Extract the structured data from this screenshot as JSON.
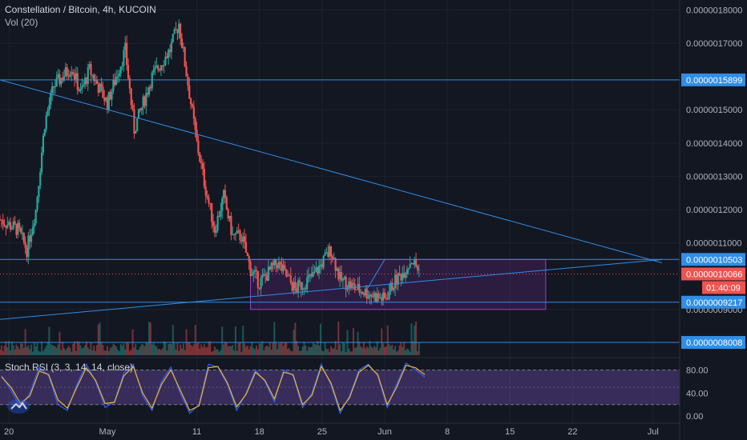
{
  "header": {
    "symbol_title": "Constellation / Bitcoin, 4h, KUCOIN",
    "volume_label": "Vol (20)"
  },
  "stoch": {
    "label": "Stoch RSI (3, 3, 14, 14, close)"
  },
  "colors": {
    "background": "#131722",
    "up": "#26a69a",
    "down": "#ef5350",
    "line": "#2f8ee6",
    "box_fill": "#6a2c8f",
    "k_line": "#2962ff",
    "d_line": "#f0b429",
    "stoch_band": "#7e57c2"
  },
  "chart_data": [
    {
      "type": "candlestick",
      "title": "Constellation / Bitcoin, 4h, KUCOIN",
      "x_ticks": [
        "20",
        "May",
        "11",
        "18",
        "25",
        "Jun",
        "8",
        "15",
        "22",
        "Jul"
      ],
      "y_ticks": [
        "0.0000018000",
        "0.0000017000",
        "0.0000015000",
        "0.0000014000",
        "0.0000013000",
        "0.0000012000",
        "0.0000011000",
        "0.0000009000"
      ],
      "ylim": [
        7.6e-07,
        1.83e-06
      ],
      "trend_segments": [
        {
          "from": [
            "Apr 19",
            1.59e-06
          ],
          "to": [
            "Jul 2",
            1.04e-06
          ]
        },
        {
          "from": [
            "Apr 19",
            8.7e-07
          ],
          "to": [
            "Jul 2",
            1.05e-06
          ]
        },
        {
          "from": [
            "May 30",
            9.6e-07
          ],
          "to": [
            "Jun 1",
            1.05e-06
          ]
        }
      ],
      "range_box": {
        "from": "May 17",
        "to": "Jun 19",
        "low": 9e-07,
        "high": 1.05e-06
      },
      "horizontal_levels": [
        {
          "value": 1.5899e-06,
          "label": "0.0000015899"
        },
        {
          "value": 1.0503e-06,
          "label": "0.0000010503"
        },
        {
          "value": 9.217e-07,
          "label": "0.0000009217"
        },
        {
          "value": 8.008e-07,
          "label": "0.0000008008"
        }
      ],
      "last_price": {
        "value": 1.0066e-06,
        "label": "0.0000010066",
        "countdown": "01:40:09"
      },
      "price_path": [
        [
          "Apr 19",
          1.17e-06
        ],
        [
          "Apr 21",
          1.14e-06
        ],
        [
          "Apr 22",
          1.08e-06
        ],
        [
          "Apr 23",
          1.2e-06
        ],
        [
          "Apr 24",
          1.46e-06
        ],
        [
          "Apr 25",
          1.57e-06
        ],
        [
          "Apr 27",
          1.63e-06
        ],
        [
          "Apr 28",
          1.55e-06
        ],
        [
          "Apr 29",
          1.62e-06
        ],
        [
          "May 1",
          1.52e-06
        ],
        [
          "May 3",
          1.68e-06
        ],
        [
          "May 4",
          1.44e-06
        ],
        [
          "May 6",
          1.6e-06
        ],
        [
          "May 8",
          1.68e-06
        ],
        [
          "May 9",
          1.76e-06
        ],
        [
          "May 10",
          1.58e-06
        ],
        [
          "May 11",
          1.4e-06
        ],
        [
          "May 12",
          1.26e-06
        ],
        [
          "May 13",
          1.14e-06
        ],
        [
          "May 14",
          1.24e-06
        ],
        [
          "May 15",
          1.12e-06
        ],
        [
          "May 16",
          1.12e-06
        ],
        [
          "May 17",
          1.02e-06
        ],
        [
          "May 18",
          9.8e-07
        ],
        [
          "May 20",
          1.04e-06
        ],
        [
          "May 22",
          9.6e-07
        ],
        [
          "May 24",
          1e-06
        ],
        [
          "May 26",
          1.08e-06
        ],
        [
          "May 27",
          9.9e-07
        ],
        [
          "May 29",
          9.6e-07
        ],
        [
          "May 31",
          9.4e-07
        ],
        [
          "Jun 1",
          9.3e-07
        ],
        [
          "Jun 2",
          9.8e-07
        ],
        [
          "Jun 3",
          1.01e-06
        ],
        [
          "Jun 4",
          1.05e-06
        ],
        [
          "Jun 5",
          1.01e-06
        ]
      ]
    },
    {
      "type": "line",
      "title": "Stoch RSI (3, 3, 14, 14, close)",
      "y_ticks": [
        "80.00",
        "40.00",
        "0.00"
      ],
      "ylim": [
        -8,
        100
      ],
      "band": [
        20,
        80
      ],
      "series": [
        {
          "name": "K",
          "values": [
            70,
            45,
            15,
            40,
            85,
            70,
            20,
            10,
            55,
            90,
            60,
            15,
            25,
            75,
            90,
            35,
            10,
            60,
            85,
            40,
            5,
            20,
            90,
            85,
            55,
            10,
            40,
            80,
            60,
            25,
            80,
            70,
            15,
            40,
            90,
            55,
            5,
            35,
            80,
            90,
            70,
            15,
            55,
            92,
            80,
            68
          ]
        },
        {
          "name": "D",
          "values": [
            68,
            50,
            22,
            35,
            78,
            72,
            28,
            14,
            50,
            84,
            62,
            22,
            24,
            70,
            86,
            40,
            14,
            55,
            80,
            45,
            10,
            18,
            84,
            86,
            58,
            16,
            38,
            76,
            62,
            30,
            76,
            72,
            20,
            36,
            86,
            58,
            10,
            32,
            76,
            88,
            72,
            20,
            50,
            88,
            84,
            72
          ]
        }
      ]
    }
  ]
}
